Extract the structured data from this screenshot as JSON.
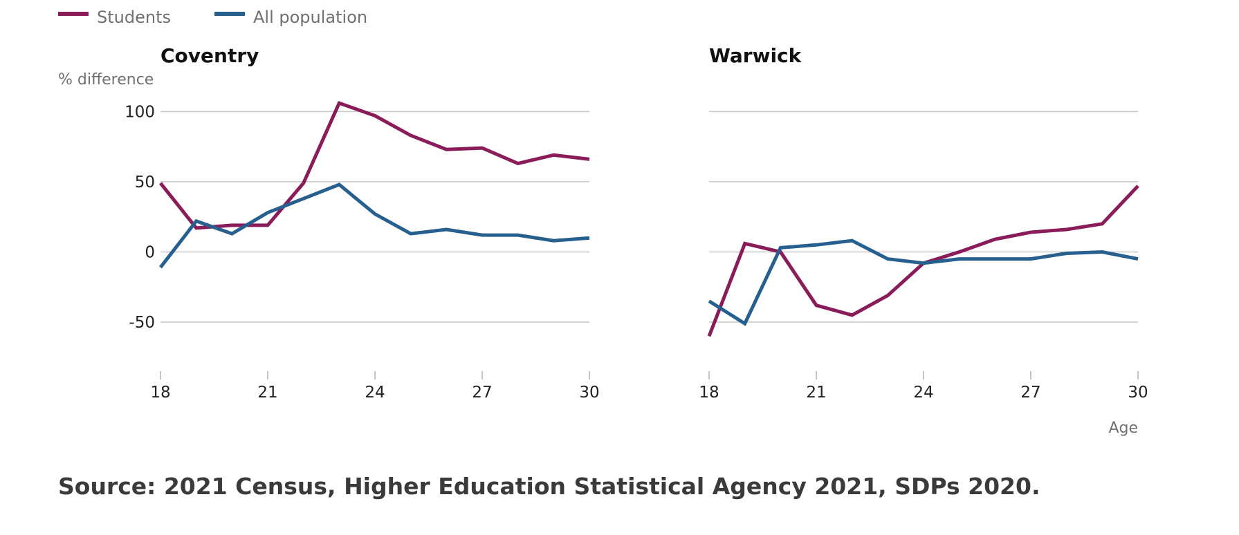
{
  "colors": {
    "students": "#8a1c5a",
    "all_population": "#27608f"
  },
  "legend": [
    {
      "key": "students",
      "label": "Students"
    },
    {
      "key": "all_population",
      "label": "All population"
    }
  ],
  "source": "Source: 2021 Census, Higher Education Statistical Agency 2021, SDPs 2020.",
  "chart_data": [
    {
      "type": "line",
      "title": "Coventry",
      "ylabel": "% difference",
      "xlabel": "",
      "x": [
        18,
        19,
        20,
        21,
        22,
        23,
        24,
        25,
        26,
        27,
        28,
        29,
        30
      ],
      "xticks": [
        18,
        21,
        24,
        27,
        30
      ],
      "yticks": [
        100,
        50,
        0,
        -50
      ],
      "ylim": [
        -80,
        110
      ],
      "xlim": [
        18,
        30
      ],
      "grid": true,
      "legend_position": "top-left",
      "series": [
        {
          "name": "Students",
          "key": "students",
          "values": [
            49,
            17,
            19,
            19,
            49,
            106,
            97,
            83,
            73,
            74,
            63,
            69,
            66
          ]
        },
        {
          "name": "All population",
          "key": "all_population",
          "values": [
            -11,
            22,
            13,
            28,
            38,
            48,
            27,
            13,
            16,
            12,
            12,
            8,
            10
          ]
        }
      ]
    },
    {
      "type": "line",
      "title": "Warwick",
      "ylabel": "",
      "xlabel": "Age",
      "x": [
        18,
        19,
        20,
        21,
        22,
        23,
        24,
        25,
        26,
        27,
        28,
        29,
        30
      ],
      "xticks": [
        18,
        21,
        24,
        27,
        30
      ],
      "yticks": [
        100,
        50,
        0,
        -50
      ],
      "ylim": [
        -80,
        110
      ],
      "xlim": [
        18,
        30
      ],
      "grid": true,
      "series": [
        {
          "name": "Students",
          "key": "students",
          "values": [
            -60,
            6,
            0,
            -38,
            -45,
            -31,
            -8,
            0,
            9,
            14,
            16,
            20,
            47
          ]
        },
        {
          "name": "All population",
          "key": "all_population",
          "values": [
            -35,
            -51,
            3,
            5,
            8,
            -5,
            -8,
            -5,
            -5,
            -5,
            -1,
            0,
            -5
          ]
        }
      ]
    }
  ]
}
